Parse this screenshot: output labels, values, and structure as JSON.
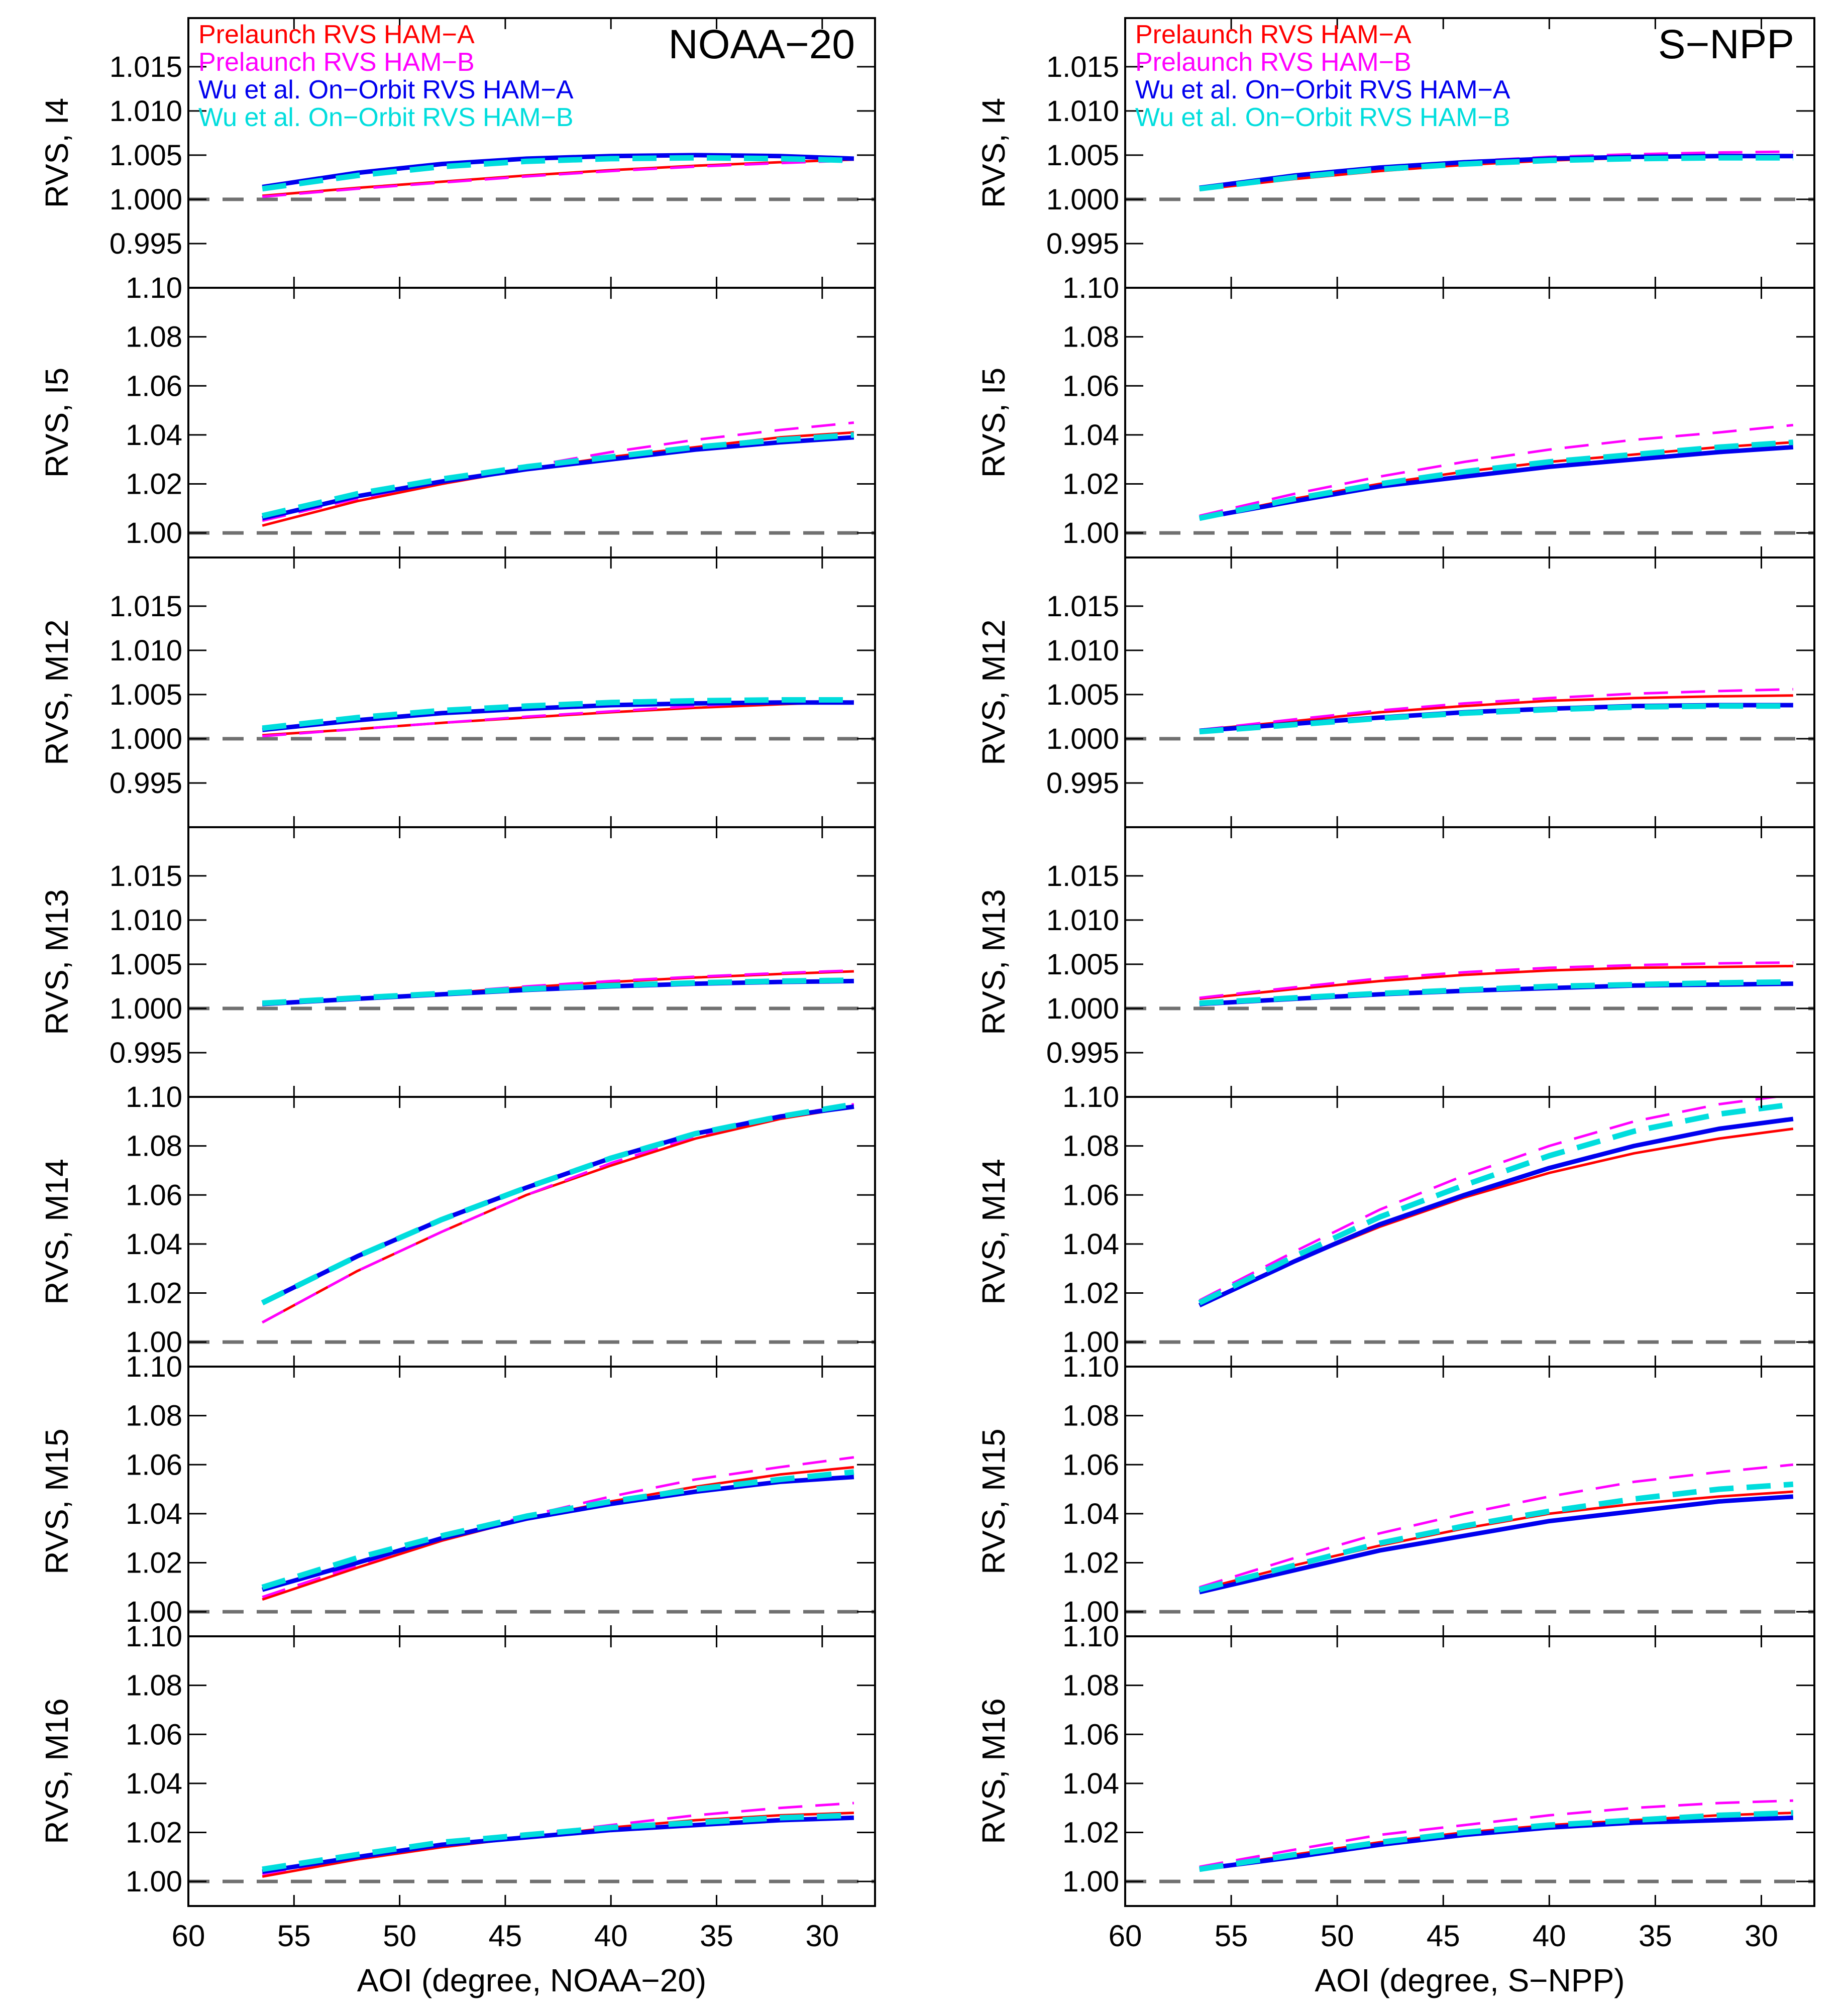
{
  "legend": [
    {
      "key": "pre_a",
      "label": "Prelaunch RVS HAM−A",
      "color": "#ff0000",
      "dash": "solid"
    },
    {
      "key": "pre_b",
      "label": "Prelaunch RVS HAM−B",
      "color": "#ff00ff",
      "dash": "dashed"
    },
    {
      "key": "wu_a",
      "label": "Wu et al. On−Orbit RVS HAM−A",
      "color": "#0000ee",
      "dash": "solid"
    },
    {
      "key": "wu_b",
      "label": "Wu et al. On−Orbit RVS HAM−B",
      "color": "#00dddd",
      "dash": "dashed"
    }
  ],
  "reference_line": {
    "value": 1.0,
    "color": "#707070"
  },
  "chart_data": [
    {
      "type": "line",
      "title": "NOAA−20",
      "xlabel": "AOI (degree, NOAA−20)",
      "xlim": [
        60,
        27.5
      ],
      "xticks": [
        60,
        55,
        50,
        45,
        40,
        35,
        30
      ],
      "x": [
        56.5,
        52,
        48,
        44,
        40,
        36,
        32,
        28.5
      ],
      "panels": [
        {
          "ylabel": "RVS, I4",
          "ylim": [
            0.99,
            1.0205
          ],
          "yticks": [
            "1.015",
            "1.010",
            "1.005",
            "1.000",
            "0.995"
          ],
          "series": {
            "pre_a": [
              1.0004,
              1.0013,
              1.002,
              1.0027,
              1.0033,
              1.0038,
              1.0042,
              1.0045
            ],
            "pre_b": [
              1.0003,
              1.0012,
              1.0019,
              1.0026,
              1.0032,
              1.0037,
              1.0041,
              1.0044
            ],
            "wu_a": [
              1.0014,
              1.003,
              1.004,
              1.0046,
              1.0049,
              1.005,
              1.0049,
              1.0046
            ],
            "wu_b": [
              1.0012,
              1.0027,
              1.0037,
              1.0043,
              1.0046,
              1.0047,
              1.0046,
              1.0044
            ]
          }
        },
        {
          "ylabel": "RVS, I5",
          "ylim": [
            0.99,
            1.1
          ],
          "yticks": [
            "1.10",
            "1.08",
            "1.06",
            "1.04",
            "1.02",
            "1.00"
          ],
          "series": {
            "pre_a": [
              1.003,
              1.013,
              1.02,
              1.026,
              1.031,
              1.035,
              1.039,
              1.041
            ],
            "pre_b": [
              1.005,
              1.014,
              1.021,
              1.027,
              1.033,
              1.038,
              1.042,
              1.045
            ],
            "wu_a": [
              1.006,
              1.015,
              1.021,
              1.026,
              1.03,
              1.034,
              1.037,
              1.039
            ],
            "wu_b": [
              1.007,
              1.016,
              1.022,
              1.027,
              1.031,
              1.035,
              1.038,
              1.04
            ]
          }
        },
        {
          "ylabel": "RVS, M12",
          "ylim": [
            0.99,
            1.0205
          ],
          "yticks": [
            "1.015",
            "1.010",
            "1.005",
            "1.000",
            "0.995"
          ],
          "series": {
            "pre_a": [
              1.0004,
              1.0011,
              1.0018,
              1.0024,
              1.003,
              1.0035,
              1.0039,
              1.0042
            ],
            "pre_b": [
              1.0003,
              1.0011,
              1.0018,
              1.0025,
              1.0031,
              1.0037,
              1.0042,
              1.0046
            ],
            "wu_a": [
              1.001,
              1.0021,
              1.0029,
              1.0034,
              1.0038,
              1.004,
              1.0041,
              1.0041
            ],
            "wu_b": [
              1.0012,
              1.0024,
              1.0032,
              1.0037,
              1.0041,
              1.0043,
              1.0044,
              1.0044
            ]
          }
        },
        {
          "ylabel": "RVS, M13",
          "ylim": [
            0.99,
            1.0205
          ],
          "yticks": [
            "1.015",
            "1.010",
            "1.005",
            "1.000",
            "0.995"
          ],
          "series": {
            "pre_a": [
              1.0004,
              1.001,
              1.0017,
              1.0024,
              1.003,
              1.0035,
              1.0039,
              1.0042
            ],
            "pre_b": [
              1.0004,
              1.0011,
              1.0018,
              1.0025,
              1.0031,
              1.0036,
              1.004,
              1.0043
            ],
            "wu_a": [
              1.0005,
              1.0011,
              1.0016,
              1.0021,
              1.0025,
              1.0028,
              1.003,
              1.0031
            ],
            "wu_b": [
              1.0006,
              1.0012,
              1.0017,
              1.0022,
              1.0026,
              1.0029,
              1.0031,
              1.0032
            ]
          }
        },
        {
          "ylabel": "RVS, M14",
          "ylim": [
            0.99,
            1.1
          ],
          "yticks": [
            "1.10",
            "1.08",
            "1.06",
            "1.04",
            "1.02",
            "1.00"
          ],
          "series": {
            "pre_a": [
              1.008,
              1.029,
              1.045,
              1.06,
              1.072,
              1.083,
              1.091,
              1.096
            ],
            "pre_b": [
              1.008,
              1.029,
              1.045,
              1.06,
              1.073,
              1.084,
              1.092,
              1.097
            ],
            "wu_a": [
              1.016,
              1.035,
              1.05,
              1.063,
              1.075,
              1.085,
              1.092,
              1.096
            ],
            "wu_b": [
              1.016,
              1.035,
              1.05,
              1.063,
              1.075,
              1.085,
              1.092,
              1.097
            ]
          }
        },
        {
          "ylabel": "RVS, M15",
          "ylim": [
            0.99,
            1.1
          ],
          "yticks": [
            "1.10",
            "1.08",
            "1.06",
            "1.04",
            "1.02",
            "1.00"
          ],
          "series": {
            "pre_a": [
              1.005,
              1.018,
              1.029,
              1.038,
              1.045,
              1.051,
              1.056,
              1.059
            ],
            "pre_b": [
              1.006,
              1.019,
              1.03,
              1.039,
              1.047,
              1.054,
              1.059,
              1.063
            ],
            "wu_a": [
              1.009,
              1.02,
              1.03,
              1.038,
              1.044,
              1.049,
              1.053,
              1.055
            ],
            "wu_b": [
              1.01,
              1.022,
              1.031,
              1.039,
              1.045,
              1.05,
              1.054,
              1.057
            ]
          }
        },
        {
          "ylabel": "RVS, M16",
          "ylim": [
            0.99,
            1.1
          ],
          "yticks": [
            "1.10",
            "1.08",
            "1.06",
            "1.04",
            "1.02",
            "1.00"
          ],
          "series": {
            "pre_a": [
              1.002,
              1.009,
              1.014,
              1.018,
              1.022,
              1.025,
              1.027,
              1.028
            ],
            "pre_b": [
              1.003,
              1.01,
              1.015,
              1.019,
              1.023,
              1.027,
              1.03,
              1.032
            ],
            "wu_a": [
              1.004,
              1.01,
              1.015,
              1.018,
              1.021,
              1.023,
              1.025,
              1.026
            ],
            "wu_b": [
              1.005,
              1.011,
              1.016,
              1.019,
              1.022,
              1.024,
              1.026,
              1.027
            ]
          }
        }
      ]
    },
    {
      "type": "line",
      "title": "S−NPP",
      "xlabel": "AOI (degree, S−NPP)",
      "xlim": [
        60,
        27.5
      ],
      "xticks": [
        60,
        55,
        50,
        45,
        40,
        35,
        30
      ],
      "x": [
        56.5,
        52,
        48,
        44,
        40,
        36,
        32,
        28.5
      ],
      "panels": [
        {
          "ylabel": "RVS, I4",
          "ylim": [
            0.99,
            1.0205
          ],
          "yticks": [
            "1.015",
            "1.010",
            "1.005",
            "1.000",
            "0.995"
          ],
          "series": {
            "pre_a": [
              1.0011,
              1.0023,
              1.0032,
              1.0039,
              1.0044,
              1.0047,
              1.0049,
              1.005
            ],
            "pre_b": [
              1.0013,
              1.0026,
              1.0036,
              1.0043,
              1.0048,
              1.0051,
              1.0053,
              1.0054
            ],
            "wu_a": [
              1.0013,
              1.0027,
              1.0036,
              1.0042,
              1.0046,
              1.0048,
              1.0049,
              1.0049
            ],
            "wu_b": [
              1.0012,
              1.0025,
              1.0034,
              1.004,
              1.0044,
              1.0046,
              1.0047,
              1.0047
            ]
          }
        },
        {
          "ylabel": "RVS, I5",
          "ylim": [
            0.99,
            1.1
          ],
          "yticks": [
            "1.10",
            "1.08",
            "1.06",
            "1.04",
            "1.02",
            "1.00"
          ],
          "series": {
            "pre_a": [
              1.006,
              1.014,
              1.02,
              1.025,
              1.029,
              1.032,
              1.035,
              1.037
            ],
            "pre_b": [
              1.007,
              1.016,
              1.023,
              1.029,
              1.034,
              1.038,
              1.041,
              1.044
            ],
            "wu_a": [
              1.006,
              1.013,
              1.019,
              1.023,
              1.027,
              1.03,
              1.033,
              1.035
            ],
            "wu_b": [
              1.006,
              1.014,
              1.02,
              1.025,
              1.029,
              1.032,
              1.035,
              1.037
            ]
          }
        },
        {
          "ylabel": "RVS, M12",
          "ylim": [
            0.99,
            1.0205
          ],
          "yticks": [
            "1.015",
            "1.010",
            "1.005",
            "1.000",
            "0.995"
          ],
          "series": {
            "pre_a": [
              1.001,
              1.002,
              1.003,
              1.0037,
              1.0043,
              1.0046,
              1.0048,
              1.0049
            ],
            "pre_b": [
              1.001,
              1.0022,
              1.0032,
              1.004,
              1.0046,
              1.0051,
              1.0054,
              1.0056
            ],
            "wu_a": [
              1.0009,
              1.0017,
              1.0024,
              1.003,
              1.0034,
              1.0037,
              1.0038,
              1.0038
            ],
            "wu_b": [
              1.0008,
              1.0016,
              1.0023,
              1.0029,
              1.0033,
              1.0036,
              1.0037,
              1.0037
            ]
          }
        },
        {
          "ylabel": "RVS, M13",
          "ylim": [
            0.99,
            1.0205
          ],
          "yticks": [
            "1.015",
            "1.010",
            "1.005",
            "1.000",
            "0.995"
          ],
          "series": {
            "pre_a": [
              1.0011,
              1.0022,
              1.0031,
              1.0038,
              1.0043,
              1.0046,
              1.0047,
              1.0048
            ],
            "pre_b": [
              1.0012,
              1.0024,
              1.0034,
              1.0041,
              1.0046,
              1.0049,
              1.0051,
              1.0052
            ],
            "wu_a": [
              1.0005,
              1.0011,
              1.0016,
              1.002,
              1.0023,
              1.0026,
              1.0027,
              1.0028
            ],
            "wu_b": [
              1.0006,
              1.0012,
              1.0017,
              1.0021,
              1.0025,
              1.0027,
              1.0029,
              1.003
            ]
          }
        },
        {
          "ylabel": "RVS, M14",
          "ylim": [
            0.99,
            1.1
          ],
          "yticks": [
            "1.10",
            "1.08",
            "1.06",
            "1.04",
            "1.02",
            "1.00"
          ],
          "series": {
            "pre_a": [
              1.015,
              1.033,
              1.047,
              1.059,
              1.069,
              1.077,
              1.083,
              1.087
            ],
            "pre_b": [
              1.017,
              1.037,
              1.054,
              1.068,
              1.08,
              1.09,
              1.097,
              1.101
            ],
            "wu_a": [
              1.015,
              1.033,
              1.048,
              1.06,
              1.071,
              1.08,
              1.087,
              1.091
            ],
            "wu_b": [
              1.016,
              1.035,
              1.051,
              1.064,
              1.076,
              1.086,
              1.093,
              1.097
            ]
          }
        },
        {
          "ylabel": "RVS, M15",
          "ylim": [
            0.99,
            1.1
          ],
          "yticks": [
            "1.10",
            "1.08",
            "1.06",
            "1.04",
            "1.02",
            "1.00"
          ],
          "series": {
            "pre_a": [
              1.009,
              1.019,
              1.027,
              1.034,
              1.04,
              1.044,
              1.047,
              1.049
            ],
            "pre_b": [
              1.01,
              1.022,
              1.032,
              1.04,
              1.047,
              1.053,
              1.057,
              1.06
            ],
            "wu_a": [
              1.008,
              1.017,
              1.025,
              1.031,
              1.037,
              1.041,
              1.045,
              1.047
            ],
            "wu_b": [
              1.009,
              1.019,
              1.028,
              1.035,
              1.041,
              1.046,
              1.05,
              1.052
            ]
          }
        },
        {
          "ylabel": "RVS, M16",
          "ylim": [
            0.99,
            1.1
          ],
          "yticks": [
            "1.10",
            "1.08",
            "1.06",
            "1.04",
            "1.02",
            "1.00"
          ],
          "series": {
            "pre_a": [
              1.005,
              1.011,
              1.016,
              1.02,
              1.023,
              1.025,
              1.027,
              1.028
            ],
            "pre_b": [
              1.006,
              1.013,
              1.019,
              1.023,
              1.027,
              1.03,
              1.032,
              1.033
            ],
            "wu_a": [
              1.005,
              1.01,
              1.015,
              1.019,
              1.022,
              1.024,
              1.025,
              1.026
            ],
            "wu_b": [
              1.005,
              1.011,
              1.016,
              1.02,
              1.023,
              1.025,
              1.027,
              1.028
            ]
          }
        }
      ]
    }
  ]
}
